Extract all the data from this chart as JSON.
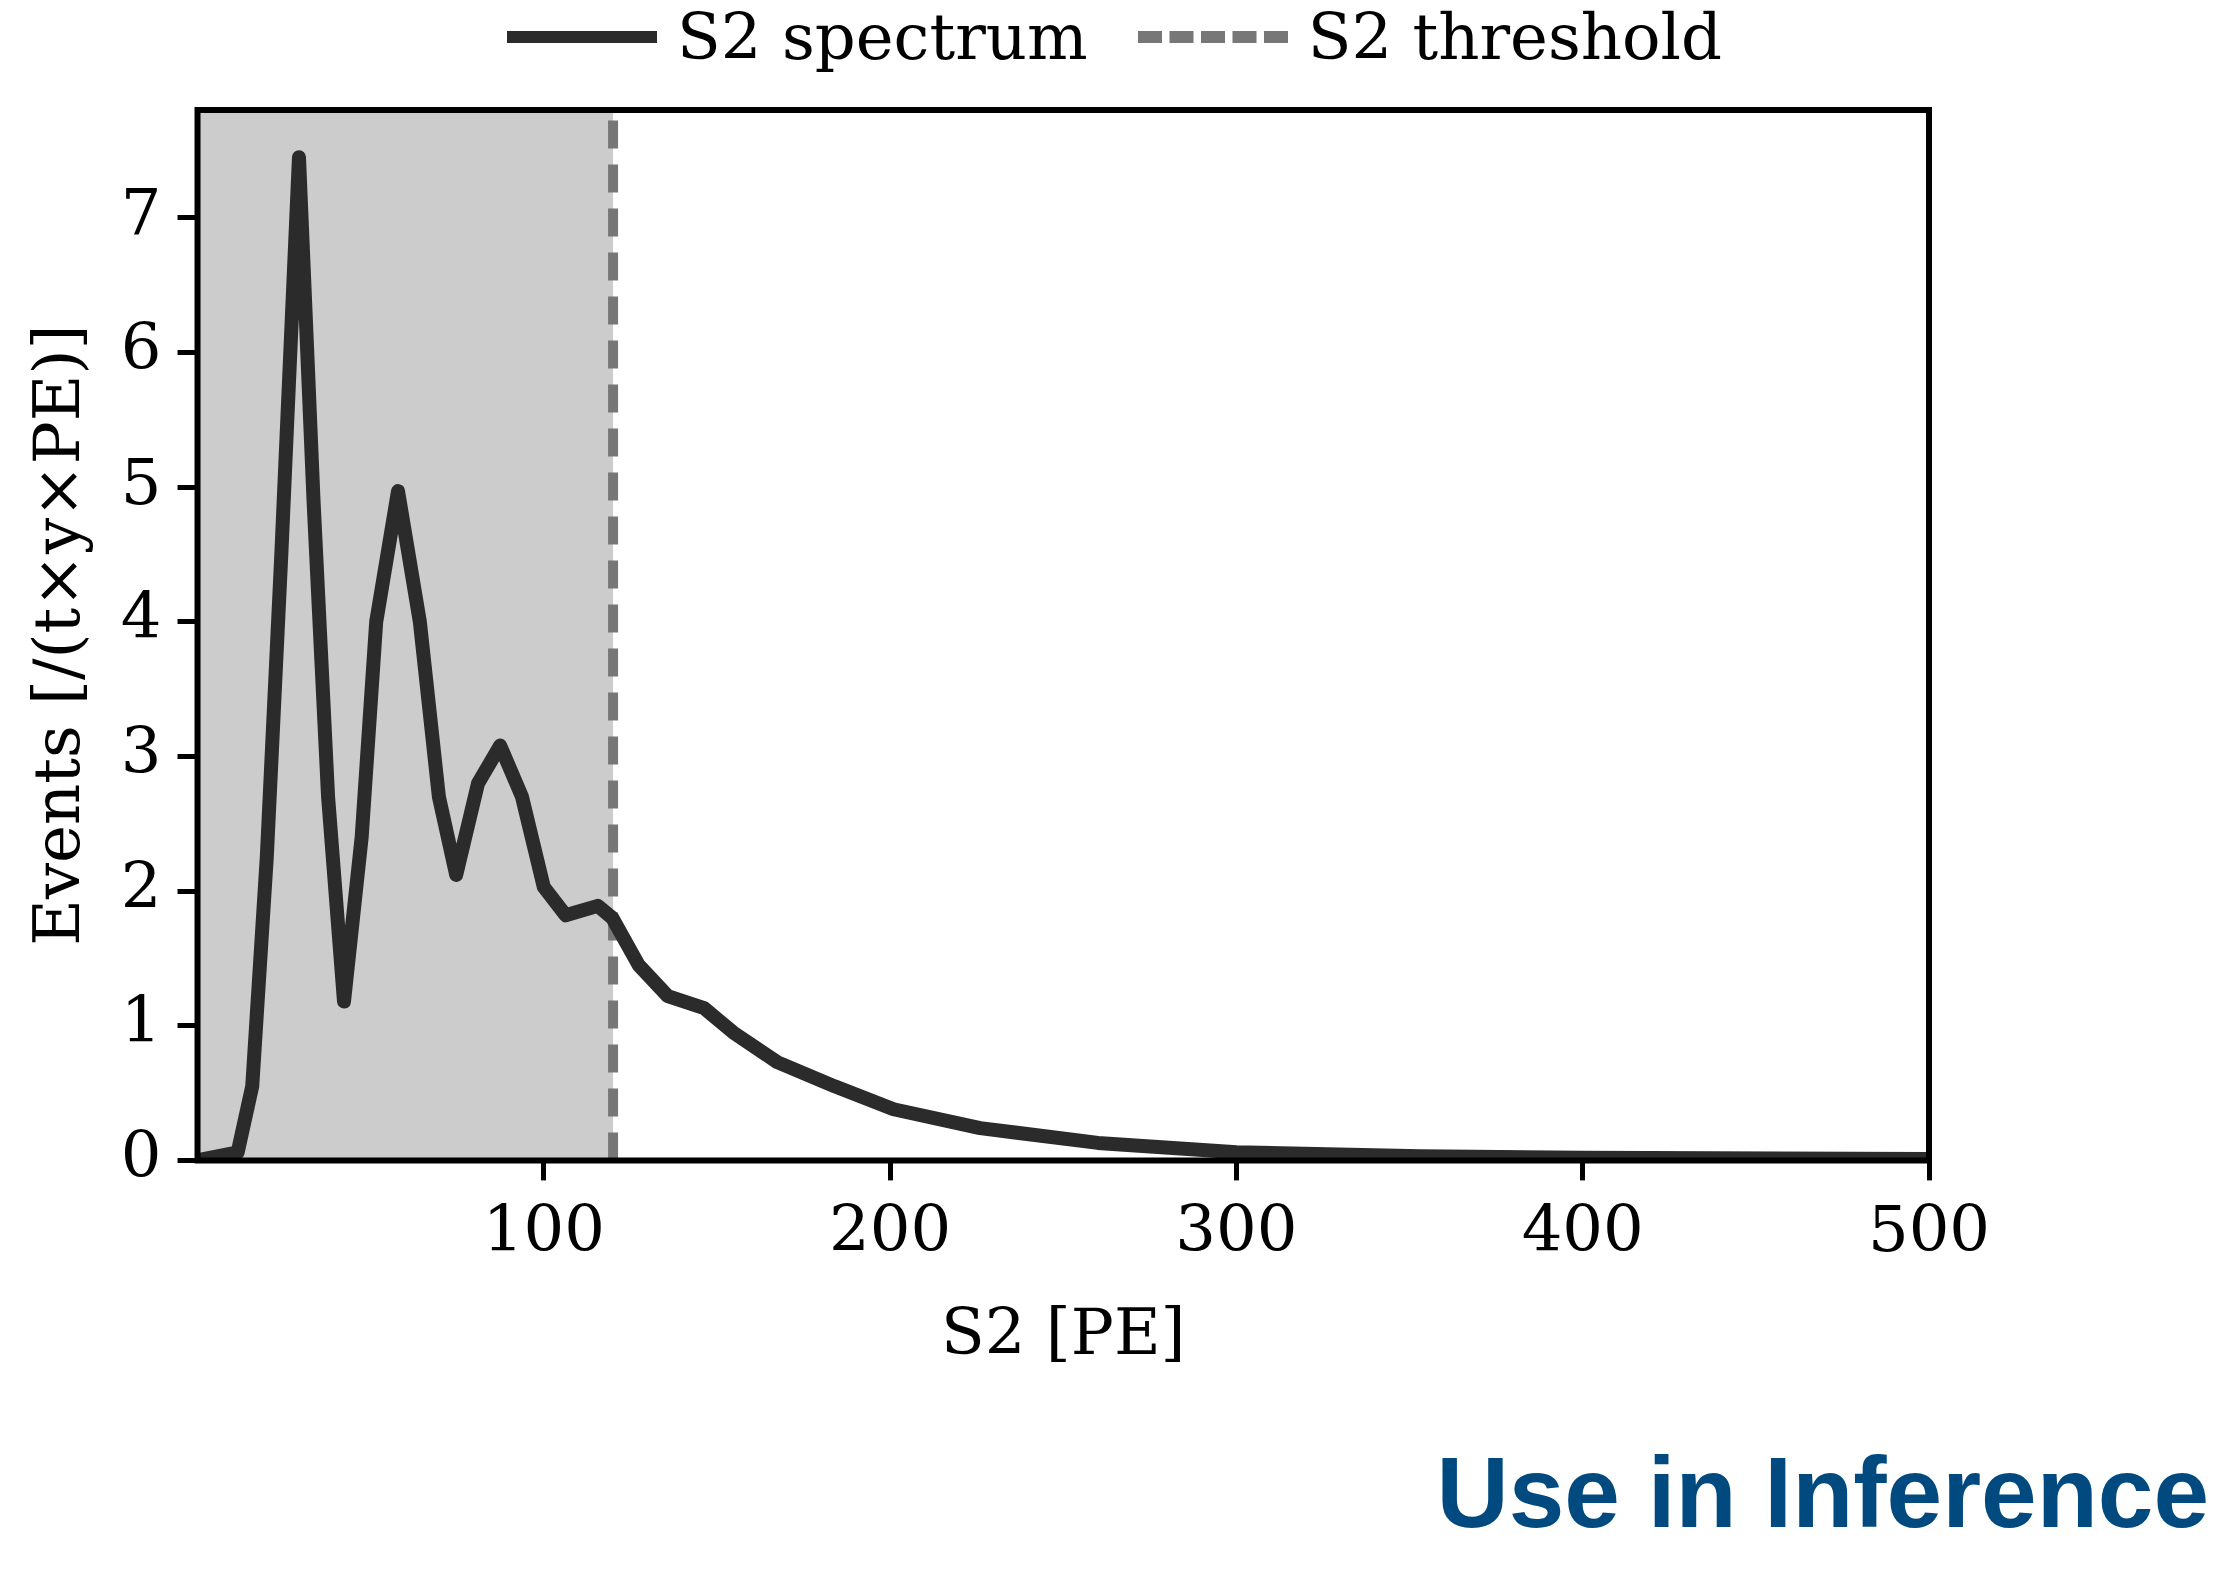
{
  "chart_data": {
    "type": "line",
    "xlabel": "S2 [PE]",
    "ylabel": "Events [/(t×y×PE)]",
    "x": [
      0,
      11.6,
      15.8,
      20,
      24.2,
      29.3,
      33.5,
      37.7,
      42.3,
      47.4,
      51.6,
      57.9,
      64.2,
      69.7,
      74.7,
      81,
      87.4,
      93.7,
      100,
      106.3,
      115.6,
      119.8,
      127.4,
      135.8,
      146.3,
      154.7,
      167.4,
      184,
      201,
      226,
      260,
      300,
      353,
      400,
      500
    ],
    "series": [
      {
        "name": "S2 spectrum",
        "color": "#2b2b2b",
        "values": [
          0,
          0.06,
          0.55,
          2.25,
          4.5,
          7.45,
          4.9,
          2.7,
          1.18,
          2.4,
          4.0,
          4.97,
          4.0,
          2.7,
          2.12,
          2.8,
          3.08,
          2.7,
          2.03,
          1.82,
          1.89,
          1.8,
          1.45,
          1.22,
          1.13,
          0.95,
          0.73,
          0.55,
          0.38,
          0.24,
          0.13,
          0.06,
          0.03,
          0.02,
          0.01
        ]
      }
    ],
    "ref_lines": [
      {
        "axis": "x",
        "value": 120,
        "label": "S2 threshold",
        "color": "#777777",
        "line_style": "dashed"
      }
    ],
    "bands": [
      {
        "axis": "x",
        "from": 0,
        "to": 120,
        "color": "#cccccc"
      }
    ],
    "xlim": [
      0,
      500
    ],
    "xticks": [
      100,
      200,
      300,
      400,
      500
    ],
    "ylim": [
      0,
      7.8
    ],
    "yticks": [
      0,
      1,
      2,
      3,
      4,
      5,
      6,
      7
    ],
    "legend": "top",
    "grid": false,
    "marker": "none",
    "line_style": "solid",
    "annotations": [
      "Use in Inference"
    ]
  }
}
